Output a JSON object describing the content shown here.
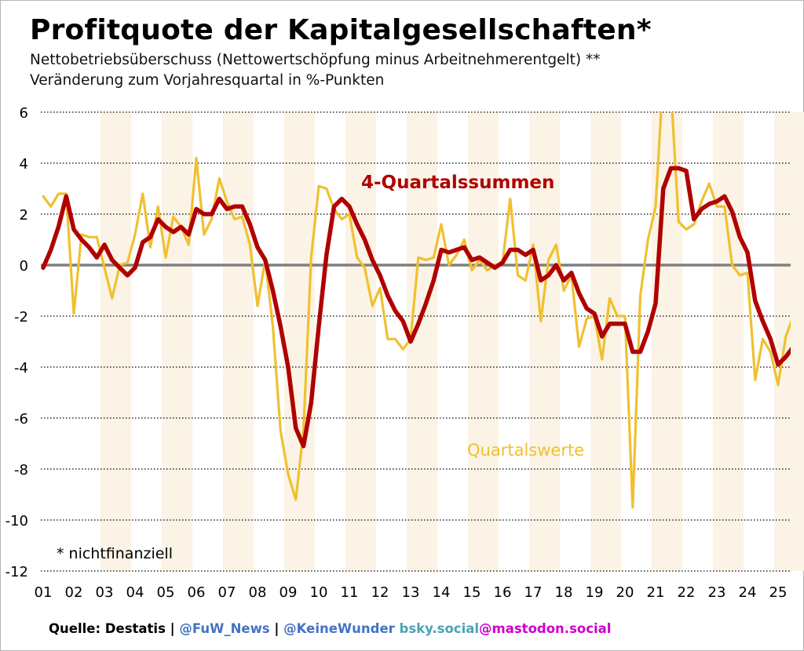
{
  "title": "Profitquote der Kapitalgesellschaften*",
  "subtitle1": "Nettobetriebsüberschuss (Nettowertschöpfung minus Arbeitnehmerentgelt) **",
  "subtitle2": "Veränderung zum Vorjahresquartal in %-Punkten",
  "footnote": "* nichtfinanziell",
  "footer": {
    "source": "Quelle: Destatis",
    "sep": " | ",
    "handle1": "@FuW_News",
    "handle2": "@KeineWunder",
    "handle2_suffix": " bsky.social",
    "handle3": "@mastodon.social"
  },
  "colors": {
    "quarterly": "#f0c030",
    "rolling": "#b00000",
    "zero_line": "#7f7f7f",
    "band": "#fbf3e6",
    "handle_blue": "#4472c4",
    "handle_teal": "#4aa3b5",
    "handle_magenta": "#cc00cc"
  },
  "chart_data": {
    "type": "line",
    "title": "Profitquote der Kapitalgesellschaften*",
    "ylim": [
      -12,
      6
    ],
    "y_ticks": [
      6,
      4,
      2,
      0,
      -2,
      -4,
      -6,
      -8,
      -10,
      -12
    ],
    "x_tick_labels": [
      "01",
      "02",
      "03",
      "04",
      "05",
      "06",
      "07",
      "08",
      "09",
      "10",
      "11",
      "12",
      "13",
      "14",
      "15",
      "16",
      "17",
      "18",
      "19",
      "20",
      "21",
      "22",
      "23",
      "24",
      "25"
    ],
    "x_start_year": 2001,
    "grid": "horizontal dotted",
    "alternating_year_bands": true,
    "series": [
      {
        "name": "Quartalswerte",
        "color": "#f0c030",
        "values": [
          2.7,
          2.3,
          2.8,
          2.8,
          -1.9,
          1.2,
          1.1,
          1.1,
          -0.1,
          -1.3,
          0.0,
          0.1,
          1.2,
          2.8,
          0.7,
          2.3,
          0.3,
          1.9,
          1.5,
          0.8,
          4.2,
          1.2,
          1.8,
          3.4,
          2.5,
          1.8,
          1.9,
          0.8,
          -1.6,
          0.2,
          -2.4,
          -6.5,
          -8.2,
          -9.2,
          -6.5,
          0.3,
          3.1,
          3.0,
          2.2,
          1.8,
          2.0,
          0.3,
          -0.1,
          -1.6,
          -0.9,
          -2.9,
          -2.9,
          -3.3,
          -2.9,
          0.3,
          0.2,
          0.3,
          1.6,
          0.0,
          0.4,
          1.0,
          -0.2,
          0.2,
          -0.2,
          0.0,
          0.1,
          2.6,
          -0.4,
          -0.6,
          0.8,
          -2.2,
          0.2,
          0.8,
          -1.0,
          -0.4,
          -3.2,
          -2.1,
          -2.0,
          -3.7,
          -1.3,
          -2.0,
          -2.0,
          -9.5,
          -1.2,
          1.0,
          2.3,
          7.5,
          6.9,
          1.7,
          1.4,
          1.6,
          2.5,
          3.2,
          2.3,
          2.3,
          0.0,
          -0.4,
          -0.3,
          -4.5,
          -2.9,
          -3.4,
          -4.7,
          -2.8,
          -2.0,
          -1.2
        ]
      },
      {
        "name": "4-Quartalssummen",
        "color": "#b00000",
        "values": [
          -0.1,
          0.6,
          1.5,
          2.7,
          1.4,
          1.0,
          0.7,
          0.3,
          0.8,
          0.2,
          -0.1,
          -0.4,
          -0.1,
          0.9,
          1.1,
          1.8,
          1.5,
          1.3,
          1.5,
          1.2,
          2.2,
          2.0,
          2.0,
          2.6,
          2.2,
          2.3,
          2.3,
          1.6,
          0.7,
          0.2,
          -1.0,
          -2.4,
          -4.0,
          -6.4,
          -7.1,
          -5.4,
          -2.4,
          0.4,
          2.3,
          2.6,
          2.3,
          1.6,
          1.0,
          0.2,
          -0.4,
          -1.2,
          -1.8,
          -2.2,
          -3.0,
          -2.3,
          -1.5,
          -0.6,
          0.6,
          0.5,
          0.6,
          0.7,
          0.2,
          0.3,
          0.1,
          -0.1,
          0.1,
          0.6,
          0.6,
          0.4,
          0.6,
          -0.6,
          -0.4,
          0.0,
          -0.6,
          -0.3,
          -1.1,
          -1.7,
          -1.9,
          -2.8,
          -2.3,
          -2.3,
          -2.3,
          -3.4,
          -3.4,
          -2.6,
          -1.5,
          3.0,
          3.8,
          3.8,
          3.7,
          1.8,
          2.2,
          2.4,
          2.5,
          2.7,
          2.1,
          1.1,
          0.5,
          -1.4,
          -2.2,
          -2.9,
          -3.9,
          -3.6,
          -3.2,
          -2.7
        ]
      }
    ]
  }
}
